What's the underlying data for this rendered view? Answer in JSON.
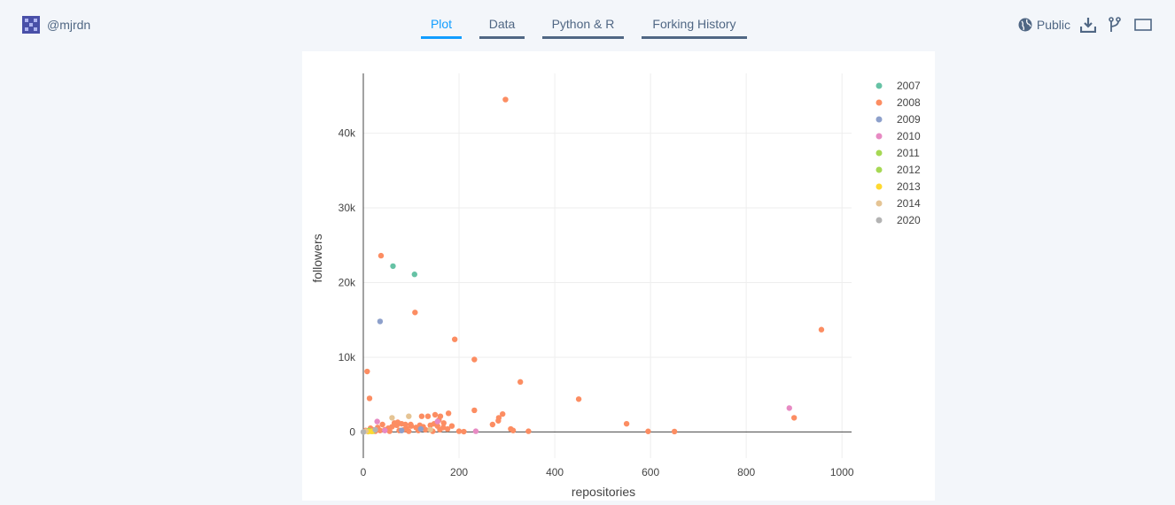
{
  "header": {
    "username": "@mjrdn",
    "tabs": [
      {
        "label": "Plot",
        "active": true
      },
      {
        "label": "Data",
        "active": false
      },
      {
        "label": "Python & R",
        "active": false
      },
      {
        "label": "Forking History",
        "active": false
      }
    ],
    "visibility_label": "Public",
    "icons": [
      "globe-icon",
      "download-icon",
      "fork-icon",
      "fullscreen-icon"
    ]
  },
  "colors": {
    "accent": "#119dff",
    "tab_underline": "#506784",
    "background": "#f3f6fa",
    "axis_text": "#444444"
  },
  "chart_data": {
    "type": "scatter",
    "title": "",
    "xlabel": "repositories",
    "ylabel": "followers",
    "xlim": [
      0,
      1020
    ],
    "ylim": [
      -3500,
      48000
    ],
    "x_ticks": [
      0,
      200,
      400,
      600,
      800,
      1000
    ],
    "x_tick_labels": [
      "0",
      "200",
      "400",
      "600",
      "800",
      "1000"
    ],
    "y_ticks": [
      0,
      10000,
      20000,
      30000,
      40000
    ],
    "y_tick_labels": [
      "0",
      "10k",
      "20k",
      "30k",
      "40k"
    ],
    "grid": true,
    "legend_position": "top-right",
    "series": [
      {
        "name": "2007",
        "color": "#66c2a5",
        "points": [
          [
            62,
            22200
          ],
          [
            107,
            21100
          ]
        ]
      },
      {
        "name": "2008",
        "color": "#fc8d62",
        "points": [
          [
            297,
            44500
          ],
          [
            37,
            23600
          ],
          [
            108,
            16000
          ],
          [
            957,
            13700
          ],
          [
            191,
            12400
          ],
          [
            232,
            9700
          ],
          [
            8,
            8100
          ],
          [
            328,
            6700
          ],
          [
            13,
            4500
          ],
          [
            450,
            4400
          ],
          [
            232,
            2900
          ],
          [
            291,
            2400
          ],
          [
            178,
            2500
          ],
          [
            900,
            1900
          ],
          [
            283,
            1900
          ],
          [
            282,
            1500
          ],
          [
            270,
            1000
          ],
          [
            550,
            1100
          ],
          [
            161,
            2100
          ],
          [
            135,
            2100
          ],
          [
            122,
            2100
          ],
          [
            150,
            2300
          ],
          [
            158,
            1600
          ],
          [
            168,
            1200
          ],
          [
            167,
            600
          ],
          [
            160,
            300
          ],
          [
            185,
            800
          ],
          [
            176,
            400
          ],
          [
            148,
            1100
          ],
          [
            140,
            900
          ],
          [
            125,
            700
          ],
          [
            110,
            600
          ],
          [
            100,
            800
          ],
          [
            90,
            500
          ],
          [
            80,
            1100
          ],
          [
            70,
            900
          ],
          [
            60,
            700
          ],
          [
            52,
            500
          ],
          [
            45,
            300
          ],
          [
            40,
            1000
          ],
          [
            35,
            200
          ],
          [
            30,
            600
          ],
          [
            25,
            100
          ],
          [
            20,
            300
          ],
          [
            15,
            500
          ],
          [
            10,
            100
          ],
          [
            5,
            200
          ],
          [
            75,
            200
          ],
          [
            85,
            300
          ],
          [
            95,
            100
          ],
          [
            115,
            200
          ],
          [
            130,
            300
          ],
          [
            145,
            100
          ],
          [
            155,
            800
          ],
          [
            65,
            1200
          ],
          [
            72,
            1300
          ],
          [
            200,
            100
          ],
          [
            210,
            50
          ],
          [
            308,
            400
          ],
          [
            313,
            200
          ],
          [
            345,
            100
          ],
          [
            595,
            80
          ],
          [
            650,
            60
          ],
          [
            120,
            400
          ],
          [
            118,
            900
          ],
          [
            99,
            1000
          ],
          [
            88,
            1000
          ],
          [
            55,
            100
          ]
        ]
      },
      {
        "name": "2009",
        "color": "#8da0cb",
        "points": [
          [
            35,
            14800
          ],
          [
            120,
            400
          ],
          [
            80,
            200
          ]
        ]
      },
      {
        "name": "2010",
        "color": "#e78ac3",
        "points": [
          [
            890,
            3200
          ],
          [
            29,
            1400
          ],
          [
            235,
            100
          ],
          [
            45,
            200
          ],
          [
            155,
            1400
          ]
        ]
      },
      {
        "name": "2011",
        "color": "#a6d854",
        "points": [
          [
            12,
            200
          ],
          [
            20,
            100
          ]
        ]
      },
      {
        "name": "2012",
        "color": "#a6d854",
        "points": [
          [
            15,
            100
          ]
        ]
      },
      {
        "name": "2013",
        "color": "#ffd92f",
        "points": [
          [
            10,
            50
          ],
          [
            18,
            80
          ]
        ]
      },
      {
        "name": "2014",
        "color": "#e5c494",
        "points": [
          [
            60,
            1900
          ],
          [
            95,
            2100
          ],
          [
            5,
            100
          ],
          [
            140,
            300
          ]
        ]
      },
      {
        "name": "2020",
        "color": "#b3b3b3",
        "points": [
          [
            0,
            0
          ],
          [
            25,
            300
          ]
        ]
      }
    ]
  }
}
